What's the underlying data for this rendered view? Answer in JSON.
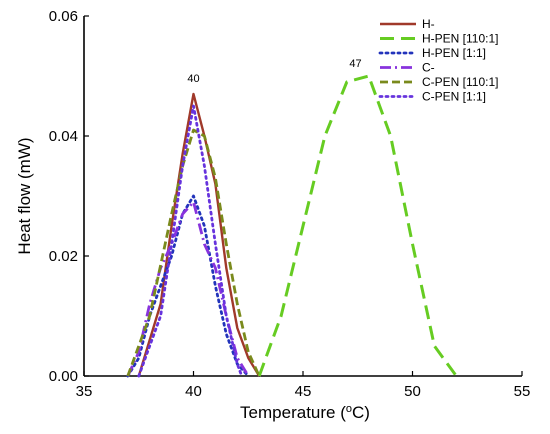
{
  "chart_data": {
    "type": "line",
    "xlabel": "Temperature (",
    "xlabel_sup": "o",
    "xlabel_end": "C)",
    "ylabel": "Heat flow (mW)",
    "xlim": [
      35,
      55
    ],
    "ylim": [
      0,
      0.06
    ],
    "x_ticks": [
      35,
      40,
      45,
      50,
      55
    ],
    "x_tick_labels": [
      "35",
      "40",
      "45",
      "50",
      "55"
    ],
    "y_ticks": [
      0,
      0.02,
      0.04,
      0.06
    ],
    "y_tick_labels": [
      "0.00",
      "0.02",
      "0.04",
      "0.06"
    ],
    "legend_position": "top-right",
    "series": [
      {
        "name": "H-",
        "color": "#a0392a",
        "style": "solid",
        "points": [
          [
            37.5,
            0
          ],
          [
            38.5,
            0.012
          ],
          [
            39,
            0.025
          ],
          [
            39.5,
            0.037
          ],
          [
            40,
            0.047
          ],
          [
            40.5,
            0.04
          ],
          [
            41,
            0.032
          ],
          [
            41.5,
            0.018
          ],
          [
            42,
            0.008
          ],
          [
            42.5,
            0.003
          ],
          [
            43,
            0
          ]
        ]
      },
      {
        "name": "H-PEN [110:1]",
        "color": "#66cc22",
        "style": "longdash",
        "points": [
          [
            43,
            0
          ],
          [
            44,
            0.01
          ],
          [
            45,
            0.025
          ],
          [
            46,
            0.04
          ],
          [
            47,
            0.049
          ],
          [
            48,
            0.05
          ],
          [
            49,
            0.04
          ],
          [
            50,
            0.022
          ],
          [
            51,
            0.005
          ],
          [
            52,
            0
          ]
        ]
      },
      {
        "name": "H-PEN [1:1]",
        "color": "#2233bb",
        "style": "dot",
        "points": [
          [
            37,
            0
          ],
          [
            37.5,
            0.003
          ],
          [
            38,
            0.01
          ],
          [
            38.5,
            0.015
          ],
          [
            39,
            0.02
          ],
          [
            39.5,
            0.027
          ],
          [
            40,
            0.03
          ],
          [
            40.5,
            0.025
          ],
          [
            41,
            0.015
          ],
          [
            41.5,
            0.007
          ],
          [
            42,
            0.002
          ],
          [
            42.5,
            0
          ]
        ]
      },
      {
        "name": "C-",
        "color": "#8833dd",
        "style": "dashdot",
        "points": [
          [
            37,
            0
          ],
          [
            37.5,
            0.004
          ],
          [
            38,
            0.012
          ],
          [
            38.5,
            0.018
          ],
          [
            39,
            0.022
          ],
          [
            39.5,
            0.027
          ],
          [
            40,
            0.029
          ],
          [
            40.5,
            0.022
          ],
          [
            41,
            0.018
          ],
          [
            41.5,
            0.01
          ],
          [
            42,
            0.003
          ],
          [
            42.5,
            0
          ]
        ]
      },
      {
        "name": "C-PEN [110:1]",
        "color": "#7a8a1c",
        "style": "dash",
        "points": [
          [
            37,
            0
          ],
          [
            38,
            0.01
          ],
          [
            39,
            0.027
          ],
          [
            39.5,
            0.035
          ],
          [
            40,
            0.041
          ],
          [
            40.5,
            0.04
          ],
          [
            41,
            0.033
          ],
          [
            41.5,
            0.022
          ],
          [
            42,
            0.012
          ],
          [
            42.5,
            0.004
          ],
          [
            43,
            0
          ]
        ]
      },
      {
        "name": "C-PEN [1:1]",
        "color": "#6633dd",
        "style": "dot",
        "points": [
          [
            37.5,
            0
          ],
          [
            38.5,
            0.01
          ],
          [
            39,
            0.022
          ],
          [
            39.5,
            0.035
          ],
          [
            40,
            0.045
          ],
          [
            40.5,
            0.035
          ],
          [
            41,
            0.022
          ],
          [
            41.5,
            0.01
          ],
          [
            42,
            0.002
          ],
          [
            42.2,
            0
          ]
        ]
      }
    ],
    "annotations": [
      {
        "text": "40",
        "x": 40,
        "y": 0.048
      },
      {
        "text": "47",
        "x": 47.4,
        "y": 0.0505
      }
    ]
  }
}
